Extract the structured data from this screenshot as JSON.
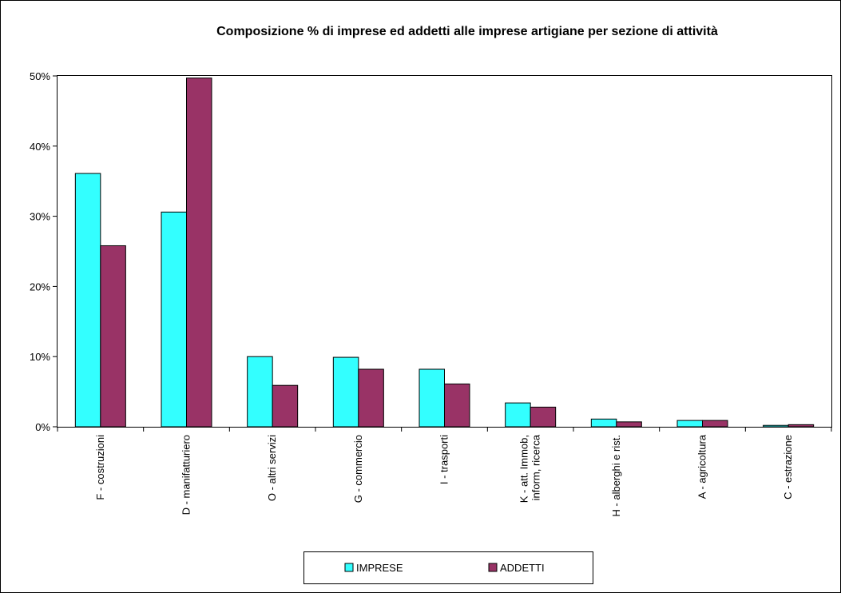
{
  "chart_data": {
    "type": "bar",
    "title": "Composizione % di imprese ed addetti alle imprese artigiane per sezione di attività",
    "xlabel": "",
    "ylabel": "",
    "ylim": [
      0,
      50
    ],
    "y_ticks": [
      "0%",
      "10%",
      "20%",
      "30%",
      "40%",
      "50%"
    ],
    "y_tick_values": [
      0,
      10,
      20,
      30,
      40,
      50
    ],
    "grid": false,
    "legend_position": "bottom",
    "categories": [
      [
        "F - costruzioni"
      ],
      [
        "D - manifatturiero"
      ],
      [
        "O - altri servizi"
      ],
      [
        "G - commercio"
      ],
      [
        "I - trasporti"
      ],
      [
        "K - att. Immob,",
        "inform, ricerca"
      ],
      [
        "H - alberghi e rist."
      ],
      [
        "A - agricoltura"
      ],
      [
        "C - estrazione"
      ]
    ],
    "series": [
      {
        "name": "IMPRESE",
        "color": "#33ffff",
        "values": [
          36.1,
          30.6,
          10.0,
          9.9,
          8.2,
          3.4,
          1.1,
          0.9,
          0.2
        ]
      },
      {
        "name": "ADDETTI",
        "color": "#993366",
        "values": [
          25.8,
          49.7,
          5.9,
          8.2,
          6.1,
          2.8,
          0.7,
          0.9,
          0.3
        ]
      }
    ]
  }
}
